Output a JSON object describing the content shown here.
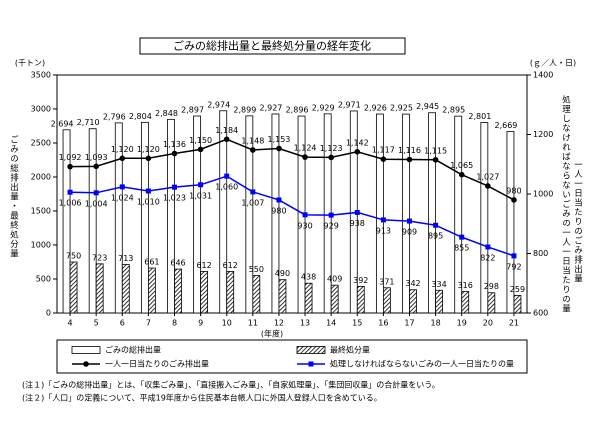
{
  "chart_data": {
    "type": "combo",
    "title": "ごみの総排出量と最終処分量の経年変化",
    "y_label": "ごみの総排出量・最終処分量",
    "y_unit": "(千トン)",
    "y2_labels": [
      "処理しなければならないごみの一人一日当たりの量",
      "一人一日当たりのごみ排出量"
    ],
    "y2_unit": "(ｇ／人・日)",
    "x_label": "(年度)",
    "categories": [
      "4",
      "5",
      "6",
      "7",
      "8",
      "9",
      "10",
      "11",
      "12",
      "13",
      "14",
      "15",
      "16",
      "17",
      "18",
      "19",
      "20",
      "21"
    ],
    "ylim": [
      0,
      3500
    ],
    "yticks": [
      0,
      500,
      1000,
      1500,
      2000,
      2500,
      3000,
      3500
    ],
    "y2lim": [
      600,
      1400
    ],
    "y2ticks": [
      600,
      800,
      1000,
      1200,
      1400
    ],
    "series": [
      {
        "name": "ごみの総排出量",
        "type": "bar",
        "color": "#ffffff",
        "values": [
          2694,
          2710,
          2796,
          2804,
          2848,
          2897,
          2974,
          2899,
          2927,
          2896,
          2929,
          2971,
          2926,
          2925,
          2945,
          2895,
          2801,
          2669
        ],
        "value_labels": [
          "2,694",
          "2,710",
          "2,796",
          "2,804",
          "2,848",
          "2,897",
          "2,974",
          "2,899",
          "2,927",
          "2,896",
          "2,929",
          "2,971",
          "2,926",
          "2,925",
          "2,945",
          "2,895",
          "2,801",
          "2,669"
        ]
      },
      {
        "name": "最終処分量",
        "type": "bar",
        "color": "#000000",
        "hatch": true,
        "values": [
          750,
          723,
          713,
          661,
          646,
          612,
          612,
          550,
          490,
          438,
          409,
          392,
          371,
          342,
          334,
          316,
          298,
          259
        ],
        "value_labels": [
          "750",
          "723",
          "713",
          "661",
          "646",
          "612",
          "612",
          "550",
          "490",
          "438",
          "409",
          "392",
          "371",
          "342",
          "334",
          "316",
          "298",
          "259"
        ]
      },
      {
        "name": "一人一日当たりのごみ排出量",
        "type": "line",
        "axis": "y2",
        "color": "#000000",
        "marker": "circle",
        "values": [
          1092,
          1093,
          1120,
          1120,
          1136,
          1150,
          1184,
          1148,
          1153,
          1124,
          1123,
          1142,
          1117,
          1116,
          1115,
          1065,
          1027,
          980
        ],
        "value_labels": [
          "1,092",
          "1,093",
          "1,120",
          "1,120",
          "1,136",
          "1,150",
          "1,184",
          "1,148",
          "1,153",
          "1,124",
          "1,123",
          "1,142",
          "1,117",
          "1,116",
          "1,115",
          "1,065",
          "1,027",
          "980"
        ]
      },
      {
        "name": "処理しなければならないごみの一人一日当たりの量",
        "type": "line",
        "axis": "y2",
        "color": "#0000ff",
        "marker": "square",
        "values": [
          1006,
          1004,
          1024,
          1010,
          1023,
          1031,
          1060,
          1007,
          980,
          930,
          929,
          938,
          913,
          909,
          895,
          855,
          822,
          792
        ],
        "value_labels": [
          "1,006",
          "1,004",
          "1,024",
          "1,010",
          "1,023",
          "1,031",
          "1,060",
          "1,007",
          "980",
          "930",
          "929",
          "938",
          "913",
          "909",
          "895",
          "855",
          "822",
          "792"
        ]
      }
    ],
    "notes": [
      "(注１)「ごみの総排出量」とは、「収集ごみ量」、「直接搬入ごみ量」、「自家処理量」、「集団回収量」の合計量をいう。",
      "(注２)「人口」の定義について、平成19年度から住民基本台帳人口に外国人登録人口を含めている。"
    ]
  }
}
